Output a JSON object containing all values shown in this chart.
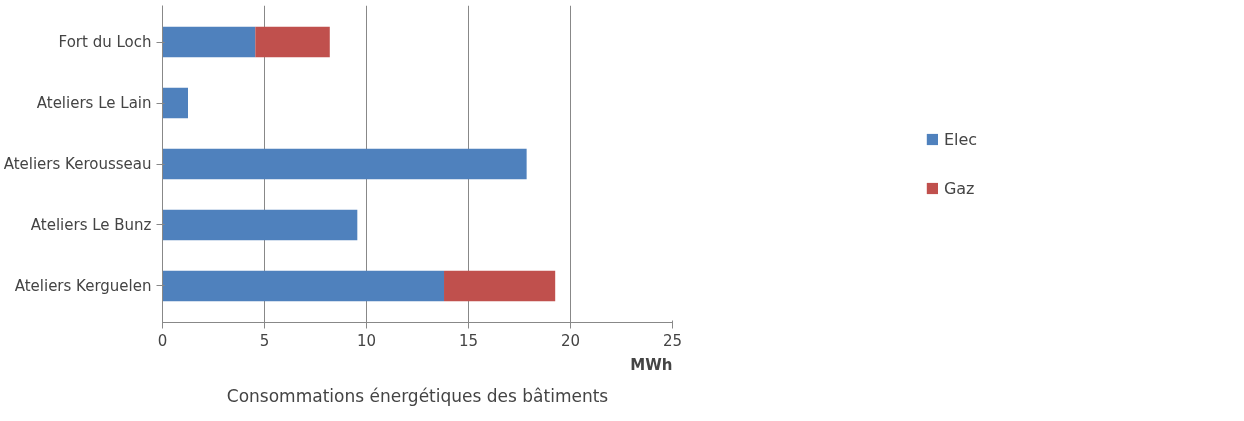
{
  "chart_data": {
    "type": "bar",
    "orientation": "horizontal",
    "stacked": true,
    "title": "Consommations énergétiques des bâtiments",
    "xlabel": "MWh",
    "categories": [
      "Fort du Loch",
      "Ateliers Le Lain",
      "Ateliers Kerousseau",
      "Ateliers Le Bunz",
      "Ateliers Kerguelen"
    ],
    "series": [
      {
        "name": "Elec",
        "color": "#4f81bd",
        "values": [
          4.55,
          1.25,
          17.85,
          9.55,
          13.8
        ]
      },
      {
        "name": "Gaz",
        "color": "#c0504d",
        "values": [
          3.65,
          null,
          null,
          null,
          5.45
        ]
      }
    ],
    "xlim": [
      0,
      25
    ],
    "xticks": [
      0,
      5,
      10,
      15,
      20,
      25
    ],
    "grid": "x",
    "legend": "right"
  }
}
